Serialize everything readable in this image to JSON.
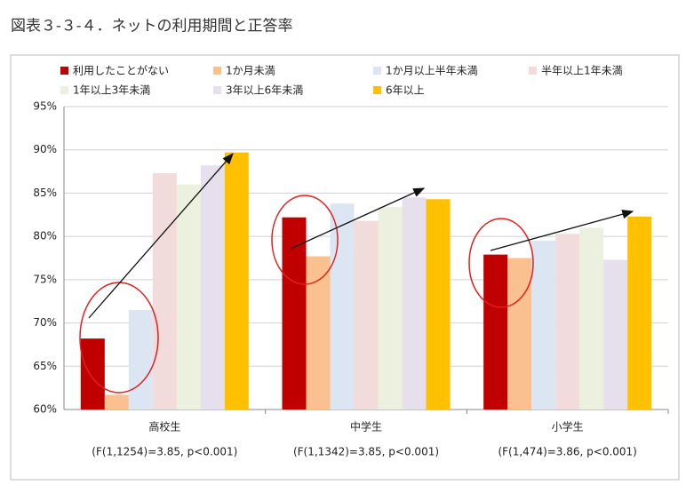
{
  "chart_data": {
    "type": "bar",
    "title": "図表３-３-４．ネットの利用期間と正答率",
    "categories": [
      "高校生",
      "中学生",
      "小学生"
    ],
    "series": [
      {
        "name": "利用したことがない",
        "color": "#c00000",
        "values": [
          68.2,
          82.2,
          77.9
        ]
      },
      {
        "name": "1か月未満",
        "color": "#fac090",
        "values": [
          61.7,
          77.7,
          77.5
        ]
      },
      {
        "name": "1か月以上半年未満",
        "color": "#dce6f2",
        "values": [
          71.5,
          83.8,
          79.5
        ]
      },
      {
        "name": "半年以上1年未満",
        "color": "#f2dcdb",
        "values": [
          87.3,
          81.8,
          80.3
        ]
      },
      {
        "name": "1年以上3年未満",
        "color": "#ebf1de",
        "values": [
          86.0,
          83.4,
          81.0
        ]
      },
      {
        "name": "3年以上6年未満",
        "color": "#e6e0ec",
        "values": [
          88.2,
          84.5,
          77.3
        ]
      },
      {
        "name": "6年以上",
        "color": "#ffc000",
        "values": [
          89.7,
          84.3,
          82.3
        ]
      }
    ],
    "annotations": [
      "(F(1,1254)=3.85, p<0.001)",
      "(F(1,1342)=3.85, p<0.001)",
      "(F(1,474)=3.86, p<0.001)"
    ],
    "ylim": [
      60,
      95
    ],
    "yticks": [
      {
        "value": 60,
        "label": "60%"
      },
      {
        "value": 65,
        "label": "65%"
      },
      {
        "value": 70,
        "label": "70%"
      },
      {
        "value": 75,
        "label": "75%"
      },
      {
        "value": 80,
        "label": "80%"
      },
      {
        "value": 85,
        "label": "85%"
      },
      {
        "value": 90,
        "label": "90%"
      },
      {
        "value": 95,
        "label": "95%"
      }
    ],
    "grid": true
  }
}
